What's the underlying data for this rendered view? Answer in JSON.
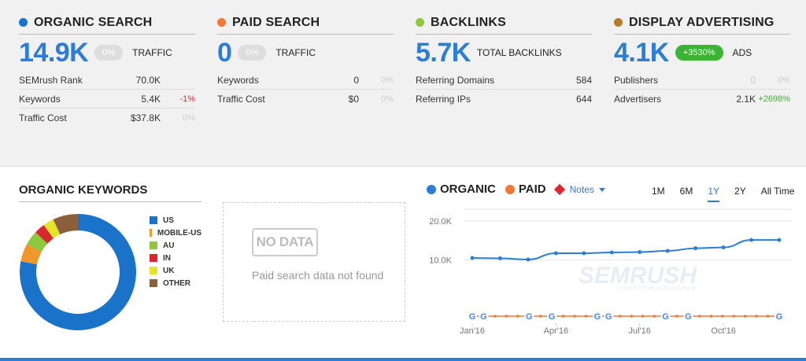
{
  "cards": [
    {
      "title": "ORGANIC SEARCH",
      "dot_color": "#1a73c8",
      "big_value": "14.9K",
      "pill": "0%",
      "pill_style": "grey",
      "big_label": "TRAFFIC",
      "rows": [
        {
          "label": "SEMrush Rank",
          "value": "70.0K",
          "change": "",
          "change_style": "grey"
        },
        {
          "label": "Keywords",
          "value": "5.4K",
          "change": "-1%",
          "change_style": "red"
        },
        {
          "label": "Traffic Cost",
          "value": "$37.8K",
          "change": "0%",
          "change_style": "grey"
        }
      ]
    },
    {
      "title": "PAID SEARCH",
      "dot_color": "#f27935",
      "big_value": "0",
      "pill": "0%",
      "pill_style": "grey",
      "big_label": "TRAFFIC",
      "rows": [
        {
          "label": "Keywords",
          "value": "0",
          "change": "0%",
          "change_style": "grey"
        },
        {
          "label": "Traffic Cost",
          "value": "$0",
          "change": "0%",
          "change_style": "grey"
        }
      ]
    },
    {
      "title": "BACKLINKS",
      "dot_color": "#8dc63f",
      "big_value": "5.7K",
      "pill": "",
      "pill_style": "none",
      "big_label": "TOTAL BACKLINKS",
      "rows": [
        {
          "label": "Referring Domains",
          "value": "584",
          "change": "",
          "change_style": "grey"
        },
        {
          "label": "Referring IPs",
          "value": "644",
          "change": "",
          "change_style": "grey"
        }
      ]
    },
    {
      "title": "DISPLAY ADVERTISING",
      "dot_color": "#b87a2a",
      "big_value": "4.1K",
      "pill": "+3530%",
      "pill_style": "green",
      "big_label": "ADS",
      "rows": [
        {
          "label": "Publishers",
          "value": "0",
          "change": "0%",
          "change_style": "grey"
        },
        {
          "label": "Advertisers",
          "value": "2.1K",
          "change": "+2698%",
          "change_style": "green"
        }
      ]
    }
  ],
  "organic_keywords": {
    "title": "ORGANIC KEYWORDS",
    "legend": [
      {
        "label": "US",
        "color": "#1a73c8",
        "share": 0.78
      },
      {
        "label": "MOBILE-US",
        "color": "#f0962a",
        "share": 0.05
      },
      {
        "label": "AU",
        "color": "#8dc63f",
        "share": 0.04
      },
      {
        "label": "IN",
        "color": "#d8282e",
        "share": 0.03
      },
      {
        "label": "UK",
        "color": "#e4e42a",
        "share": 0.03
      },
      {
        "label": "OTHER",
        "color": "#8b5e3c",
        "share": 0.07
      }
    ]
  },
  "paid_panel": {
    "badge": "NO DATA",
    "message": "Paid search data not found"
  },
  "trend": {
    "legend_organic": "ORGANIC",
    "legend_paid": "PAID",
    "notes": "Notes",
    "organic_color": "#2c7dd3",
    "paid_color": "#f27935",
    "notes_color": "#e0262e",
    "ranges": [
      "1M",
      "6M",
      "1Y",
      "2Y",
      "All Time"
    ],
    "active_range": "1Y",
    "watermark": "SEMRUSH",
    "watermark_sub": "COMPETITIVE INTELLIGENCE",
    "google_marker": "G"
  },
  "chart_data": {
    "type": "line",
    "title": "",
    "xlabel": "",
    "ylabel": "",
    "ylim": [
      0,
      20000
    ],
    "yticks": [
      10000,
      20000
    ],
    "ytick_labels": [
      "10.0K",
      "20.0K"
    ],
    "x_tick_labels": [
      "Jan'16",
      "Apr'16",
      "Jul'16",
      "Oct'16"
    ],
    "x": [
      "2016-01",
      "2016-02",
      "2016-03",
      "2016-04",
      "2016-05",
      "2016-06",
      "2016-07",
      "2016-08",
      "2016-09",
      "2016-10",
      "2016-11",
      "2016-12"
    ],
    "series": [
      {
        "name": "ORGANIC",
        "values": [
          10500,
          10400,
          10100,
          11700,
          11700,
          11900,
          12000,
          12300,
          13000,
          13200,
          15100,
          15100
        ]
      },
      {
        "name": "PAID",
        "values": [
          0,
          0,
          0,
          0,
          0,
          0,
          0,
          0,
          0,
          0,
          0,
          0
        ]
      }
    ],
    "grid": true,
    "legend": "top-left"
  }
}
